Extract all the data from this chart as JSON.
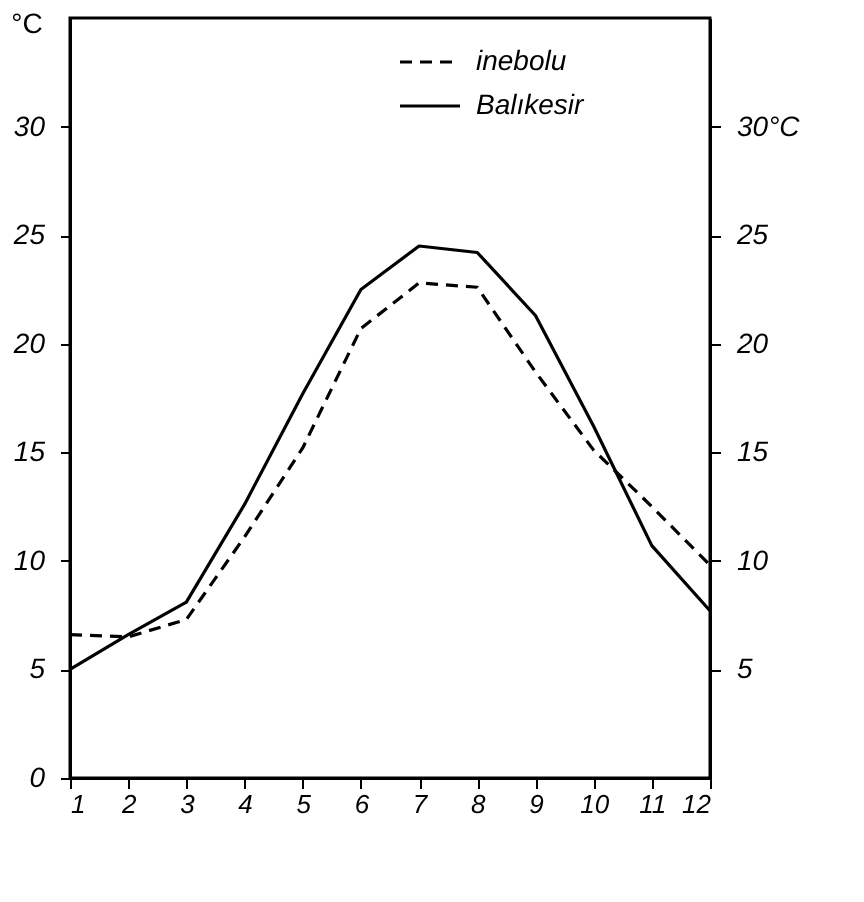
{
  "chart_data": {
    "type": "line",
    "ylabel": "°C",
    "x": [
      1,
      2,
      3,
      4,
      5,
      6,
      7,
      8,
      9,
      10,
      11,
      12
    ],
    "series": [
      {
        "name": "inebolu",
        "color": "#000000",
        "line_style": "dashed",
        "values": [
          6.6,
          6.5,
          7.3,
          11.1,
          15.2,
          20.7,
          22.8,
          22.6,
          18.7,
          15.1,
          12.5,
          9.8
        ]
      },
      {
        "name": "Balıkesir",
        "color": "#000000",
        "line_style": "solid",
        "values": [
          5.0,
          6.6,
          8.1,
          12.6,
          17.7,
          22.5,
          24.5,
          24.2,
          21.3,
          16.2,
          10.7,
          7.7
        ]
      }
    ],
    "xlim": [
      1,
      12
    ],
    "xticks": [
      1,
      2,
      3,
      4,
      5,
      6,
      7,
      8,
      9,
      10,
      11,
      12
    ],
    "ylim": [
      0,
      35
    ],
    "yticks": [
      0,
      5,
      10,
      15,
      20,
      25,
      30
    ],
    "y2lim": [
      0,
      35
    ],
    "y2ticks": [
      5,
      10,
      15,
      20,
      25,
      {
        "value": 30,
        "label": "30°C"
      }
    ],
    "grid": false,
    "legend": "top right",
    "marker": "none"
  }
}
